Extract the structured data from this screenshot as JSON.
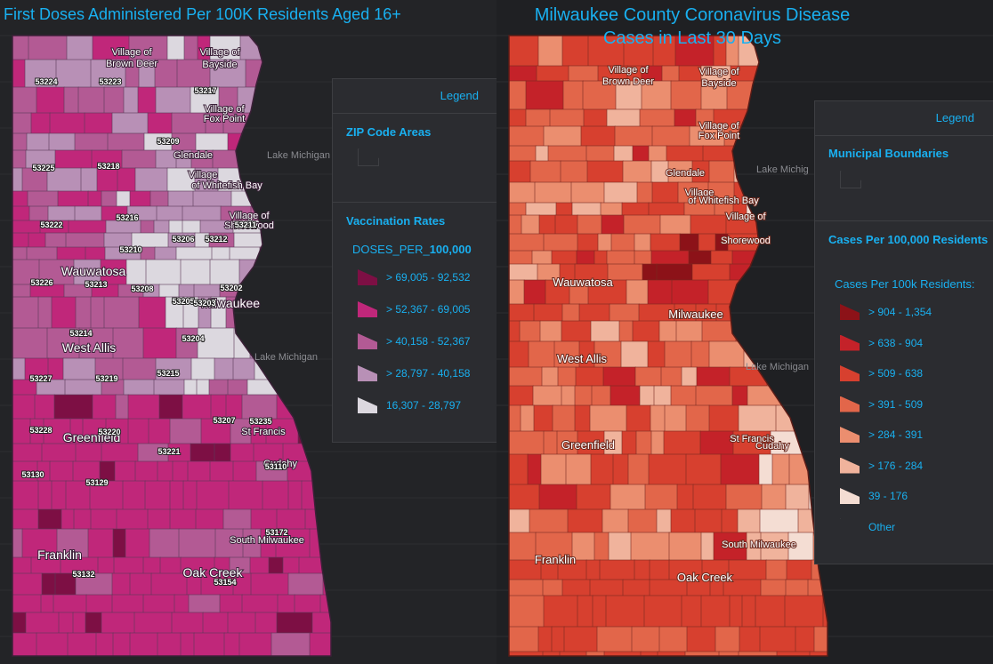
{
  "left_map": {
    "title": "First Doses Administered Per 100K Residents Aged 16+",
    "lake_labels": [
      "Lake Michigan",
      "Lake Michigan"
    ],
    "place_labels": [
      {
        "text": "Village of",
        "name": "village-brown-deer-1"
      },
      {
        "text": "Brown Deer",
        "name": "village-brown-deer-2"
      },
      {
        "text": "Village of",
        "name": "village-bayside-1"
      },
      {
        "text": "Bayside",
        "name": "village-bayside-2"
      },
      {
        "text": "Village of",
        "name": "village-fox-point-1"
      },
      {
        "text": "Fox Point",
        "name": "village-fox-point-2"
      },
      {
        "text": "Glendale",
        "name": "glendale"
      },
      {
        "text": "Village",
        "name": "village-whitefish-1"
      },
      {
        "text": "of Whitefish Bay",
        "name": "village-whitefish-2"
      },
      {
        "text": "Village of",
        "name": "village-shorewood-1"
      },
      {
        "text": "Shorewood",
        "name": "village-shorewood-2"
      },
      {
        "text": "Wauwatosa",
        "name": "wauwatosa"
      },
      {
        "text": "Milwaukee",
        "name": "milwaukee"
      },
      {
        "text": "West Allis",
        "name": "west-allis"
      },
      {
        "text": "Greenfield",
        "name": "greenfield"
      },
      {
        "text": "St Francis",
        "name": "st-francis"
      },
      {
        "text": "Cudahy",
        "name": "cudahy"
      },
      {
        "text": "South Milwaukee",
        "name": "south-milwaukee"
      },
      {
        "text": "Franklin",
        "name": "franklin"
      },
      {
        "text": "Oak Creek",
        "name": "oak-creek"
      }
    ],
    "zip_labels": [
      "53224",
      "53223",
      "53217",
      "53209",
      "53225",
      "53218",
      "53222",
      "53216",
      "53206",
      "53212",
      "53211",
      "53210",
      "53226",
      "53213",
      "53208",
      "53205",
      "53202",
      "53203",
      "53214",
      "53204",
      "53227",
      "53219",
      "53215",
      "53228",
      "53220",
      "53207",
      "53235",
      "53221",
      "53110",
      "53130",
      "53129",
      "53172",
      "53132",
      "53154"
    ],
    "legend": {
      "header": "Legend",
      "section1": "ZIP Code Areas",
      "section2": "Vaccination Rates",
      "field_prefix": "DOSES_PER_",
      "field_suffix": "100,000",
      "items": [
        {
          "label": "> 69,005 - 92,532",
          "color": "#7d0f44"
        },
        {
          "label": "> 52,367 - 69,005",
          "color": "#c0277a"
        },
        {
          "label": "> 40,158 - 52,367",
          "color": "#b35a94"
        },
        {
          "label": "> 28,797 - 40,158",
          "color": "#b890b6"
        },
        {
          "label": "16,307 - 28,797",
          "color": "#dcd8df"
        }
      ]
    }
  },
  "right_map": {
    "title_line1": "Milwaukee County Coronavirus Disease",
    "title_line2": "Cases in Last 30 Days",
    "lake_labels": [
      "Lake Michig",
      "Lake Michigan"
    ],
    "place_labels": [
      {
        "text": "Village of",
        "name": "village-brown-deer-1"
      },
      {
        "text": "Brown Deer",
        "name": "village-brown-deer-2"
      },
      {
        "text": "Village of",
        "name": "village-bayside-1"
      },
      {
        "text": "Bayside",
        "name": "village-bayside-2"
      },
      {
        "text": "Village of",
        "name": "village-fox-point-1"
      },
      {
        "text": "Fox Point",
        "name": "village-fox-point-2"
      },
      {
        "text": "Glendale",
        "name": "glendale"
      },
      {
        "text": "Village",
        "name": "village-whitefish-1"
      },
      {
        "text": "of Whitefish Bay",
        "name": "village-whitefish-2"
      },
      {
        "text": "Village of",
        "name": "village-shorewood-1"
      },
      {
        "text": "Shorewood",
        "name": "village-shorewood-2"
      },
      {
        "text": "Wauwatosa",
        "name": "wauwatosa"
      },
      {
        "text": "Milwaukee",
        "name": "milwaukee"
      },
      {
        "text": "West Allis",
        "name": "west-allis"
      },
      {
        "text": "St Francis",
        "name": "st-francis"
      },
      {
        "text": "Greenfield",
        "name": "greenfield"
      },
      {
        "text": "Cudahy",
        "name": "cudahy"
      },
      {
        "text": "South Milwaukee",
        "name": "south-milwaukee"
      },
      {
        "text": "Franklin",
        "name": "franklin"
      },
      {
        "text": "Oak Creek",
        "name": "oak-creek"
      }
    ],
    "legend": {
      "header": "Legend",
      "section1": "Municipal Boundaries",
      "section2": "Cases Per 100,000 Residents",
      "subheader": "Cases Per 100k Residents:",
      "items": [
        {
          "label": "> 904 - 1,354",
          "color": "#8c1218"
        },
        {
          "label": "> 638 - 904",
          "color": "#c42229"
        },
        {
          "label": "> 509 - 638",
          "color": "#d7402f"
        },
        {
          "label": "> 391 - 509",
          "color": "#e2664a"
        },
        {
          "label": "> 284 - 391",
          "color": "#eb8e6f"
        },
        {
          "label": "> 176 - 284",
          "color": "#f0b39c"
        },
        {
          "label": "39 - 176",
          "color": "#f4ddd3"
        },
        {
          "label": "Other",
          "color": "#2b2c30"
        }
      ]
    }
  }
}
